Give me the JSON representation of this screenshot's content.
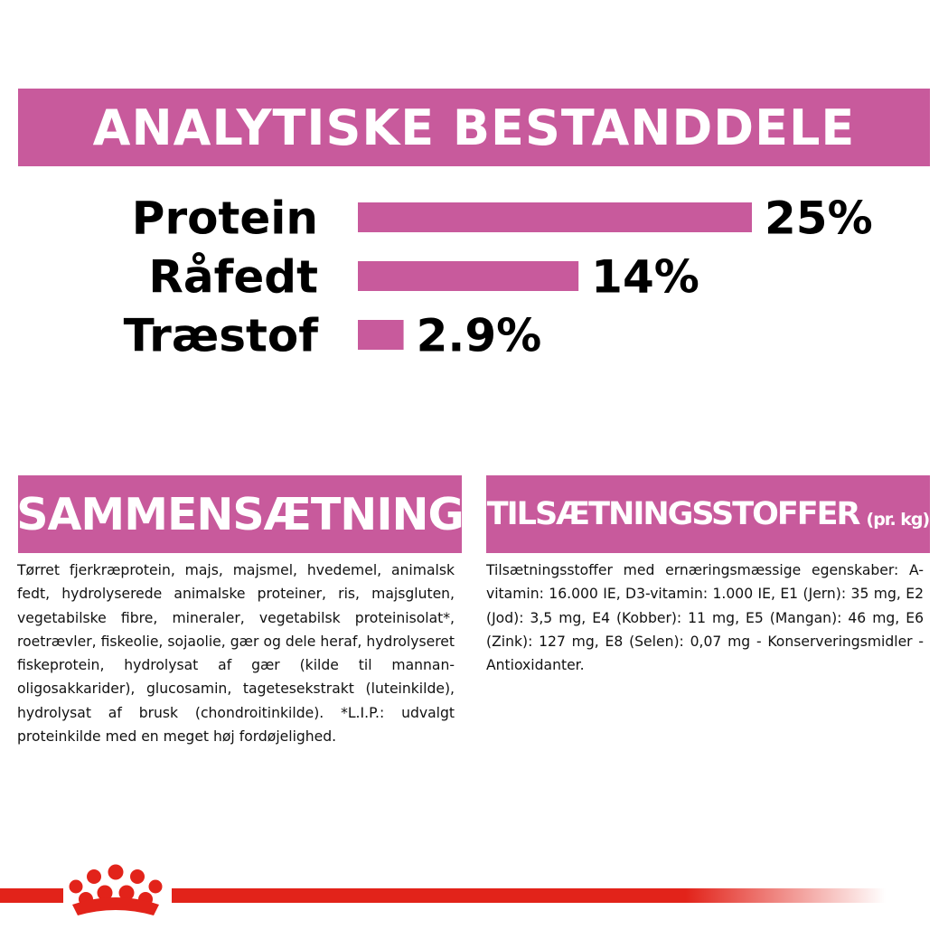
{
  "colors": {
    "accent": "#c85a9c",
    "brand_red": "#e2231a",
    "text": "#000000"
  },
  "header": {
    "title": "ANALYTISKE BESTANDDELE"
  },
  "chart_data": {
    "type": "bar",
    "orientation": "horizontal",
    "title": "ANALYTISKE BESTANDDELE",
    "categories": [
      "Protein",
      "Råfedt",
      "Træstof"
    ],
    "values": [
      25,
      14,
      2.9
    ],
    "value_labels": [
      "25%",
      "14%",
      "2.9%"
    ],
    "unit": "%",
    "xlim": [
      0,
      25
    ],
    "grid": false,
    "legend": "none"
  },
  "composition": {
    "title": "SAMMENSÆTNING",
    "text": "Tørret fjerkræprotein, majs, majsmel, hvedemel, animalsk fedt, hydrolyserede animalske proteiner, ris, majsgluten, vegetabilske fibre, mineraler, vegetabilsk proteinisolat*, roetrævler, fiskeolie, sojaolie, gær og dele heraf, hydrolyseret fiskeprotein, hydrolysat af gær (kilde til mannan-oligosakkarider), glucosamin, tagetesekstrakt (luteinkilde), hydrolysat af brusk (chondroitinkilde). *L.I.P.: udvalgt proteinkilde med en meget høj fordøjelighed."
  },
  "additives": {
    "title": "TILSÆTNINGSSTOFFER",
    "unit": "(pr. kg)",
    "text": "Tilsætningsstoffer med ernæringsmæssige egenskaber: A-vitamin: 16.000 IE, D3-vitamin: 1.000 IE, E1 (Jern): 35 mg, E2 (Jod): 3,5 mg, E4 (Kobber): 11 mg, E5 (Mangan): 46 mg, E6 (Zink): 127 mg, E8 (Selen): 0,07 mg - Konserveringsmidler - Antioxidanter."
  },
  "footer": {
    "logo_icon": "royal-crown-logo-icon"
  }
}
